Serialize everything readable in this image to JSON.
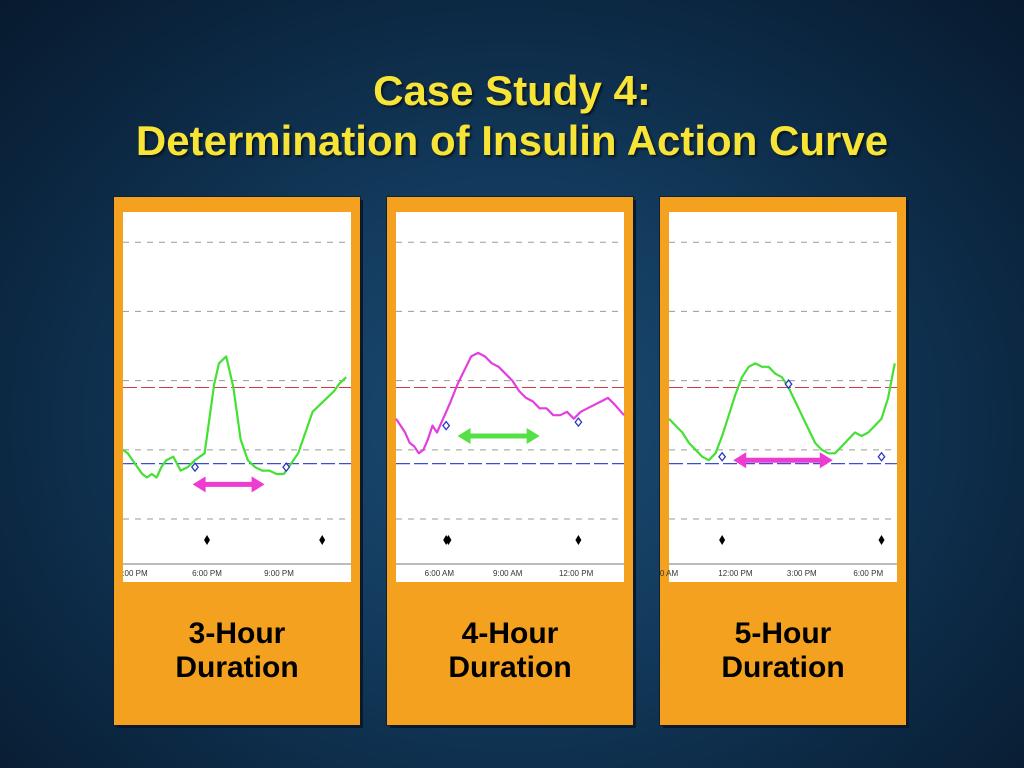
{
  "title": {
    "line1": "Case Study 4:",
    "line2": "Determination of Insulin Action Curve"
  },
  "chart_data": [
    {
      "type": "line",
      "caption_line1": "3-Hour",
      "caption_line2": "Duration",
      "x_ticks": [
        {
          "t": 15,
          "label": ":00 PM"
        },
        {
          "t": 18,
          "label": "6:00 PM"
        },
        {
          "t": 21,
          "label": "9:00 PM"
        }
      ],
      "xlim": [
        14.5,
        24
      ],
      "ylim": [
        0,
        100
      ],
      "grid_y": [
        13,
        33,
        53,
        73,
        93
      ],
      "high_line": 51,
      "low_line": 29,
      "series_color": "#44e034",
      "series": {
        "x": [
          14.5,
          14.7,
          14.9,
          15.1,
          15.3,
          15.5,
          15.7,
          15.9,
          16.1,
          16.3,
          16.6,
          16.9,
          17.2,
          17.5,
          17.7,
          17.9,
          18.1,
          18.3,
          18.5,
          18.8,
          19.1,
          19.4,
          19.7,
          20.0,
          20.3,
          20.6,
          20.9,
          21.2,
          21.5,
          21.8,
          22.1,
          22.4,
          22.7,
          23.0,
          23.3,
          23.5,
          23.8
        ],
        "y": [
          33,
          32,
          30,
          28,
          26,
          25,
          26,
          25,
          28,
          30,
          31,
          27,
          28,
          30,
          31,
          32,
          42,
          52,
          58,
          60,
          51,
          36,
          30,
          28,
          27,
          27,
          26,
          26,
          29,
          32,
          38,
          44,
          46,
          48,
          50,
          52,
          54
        ]
      },
      "markers": [
        {
          "x": 17.5,
          "y": 28
        },
        {
          "x": 21.3,
          "y": 28
        }
      ],
      "events": [
        18.0,
        22.8
      ],
      "arrow": {
        "x1": 17.4,
        "x2": 20.4,
        "y": 23,
        "color": "#ee3bd0"
      }
    },
    {
      "type": "line",
      "caption_line1": "4-Hour",
      "caption_line2": "Duration",
      "x_ticks": [
        {
          "t": 6,
          "label": "6:00 AM"
        },
        {
          "t": 9,
          "label": "9:00 AM"
        },
        {
          "t": 12,
          "label": "12:00 PM"
        }
      ],
      "xlim": [
        4.1,
        14.1
      ],
      "ylim": [
        0,
        100
      ],
      "grid_y": [
        13,
        33,
        53,
        73,
        93
      ],
      "high_line": 51,
      "low_line": 29,
      "series_color": "#e23ee0",
      "series": {
        "x": [
          4.1,
          4.3,
          4.5,
          4.7,
          4.9,
          5.1,
          5.3,
          5.5,
          5.7,
          5.9,
          6.1,
          6.3,
          6.5,
          6.8,
          7.1,
          7.4,
          7.7,
          8.0,
          8.3,
          8.6,
          8.9,
          9.2,
          9.5,
          9.8,
          10.1,
          10.4,
          10.7,
          11.0,
          11.3,
          11.6,
          11.9,
          12.2,
          12.5,
          12.8,
          13.1,
          13.4,
          13.7,
          14.1
        ],
        "y": [
          42,
          40,
          38,
          35,
          34,
          32,
          33,
          36,
          40,
          38,
          41,
          44,
          47,
          52,
          56,
          60,
          61,
          60,
          58,
          57,
          55,
          53,
          50,
          48,
          47,
          45,
          45,
          43,
          43,
          44,
          42,
          44,
          45,
          46,
          47,
          48,
          46,
          43
        ]
      },
      "markers": [
        {
          "x": 6.3,
          "y": 40
        },
        {
          "x": 12.1,
          "y": 41
        }
      ],
      "events": [
        6.3,
        6.4,
        12.1
      ],
      "arrow": {
        "x1": 6.8,
        "x2": 10.4,
        "y": 37,
        "color": "#55e045"
      }
    },
    {
      "type": "line",
      "caption_line1": "5-Hour",
      "caption_line2": "Duration",
      "x_ticks": [
        {
          "t": 9,
          "label": "0 AM"
        },
        {
          "t": 12,
          "label": "12:00 PM"
        },
        {
          "t": 15,
          "label": "3:00 PM"
        },
        {
          "t": 18,
          "label": "6:00 PM"
        }
      ],
      "xlim": [
        9,
        19.3
      ],
      "ylim": [
        0,
        100
      ],
      "grid_y": [
        13,
        33,
        53,
        73,
        93
      ],
      "high_line": 51,
      "low_line": 29,
      "series_color": "#44e034",
      "series": {
        "x": [
          9.0,
          9.3,
          9.6,
          9.9,
          10.2,
          10.5,
          10.8,
          11.1,
          11.4,
          11.7,
          12.0,
          12.3,
          12.6,
          12.9,
          13.2,
          13.5,
          13.8,
          14.1,
          14.4,
          14.7,
          15.0,
          15.3,
          15.6,
          15.9,
          16.2,
          16.5,
          16.8,
          17.1,
          17.4,
          17.7,
          18.0,
          18.3,
          18.6,
          18.9,
          19.2
        ],
        "y": [
          42,
          40,
          38,
          35,
          33,
          31,
          30,
          32,
          37,
          43,
          49,
          54,
          57,
          58,
          57,
          57,
          55,
          54,
          51,
          47,
          43,
          39,
          35,
          33,
          32,
          32,
          34,
          36,
          38,
          37,
          38,
          40,
          42,
          48,
          58
        ]
      },
      "markers": [
        {
          "x": 11.4,
          "y": 31
        },
        {
          "x": 14.4,
          "y": 52
        },
        {
          "x": 18.6,
          "y": 31
        }
      ],
      "events": [
        11.4,
        18.6
      ],
      "arrow": {
        "x1": 11.9,
        "x2": 16.4,
        "y": 30,
        "color": "#ee3bd0"
      }
    }
  ]
}
